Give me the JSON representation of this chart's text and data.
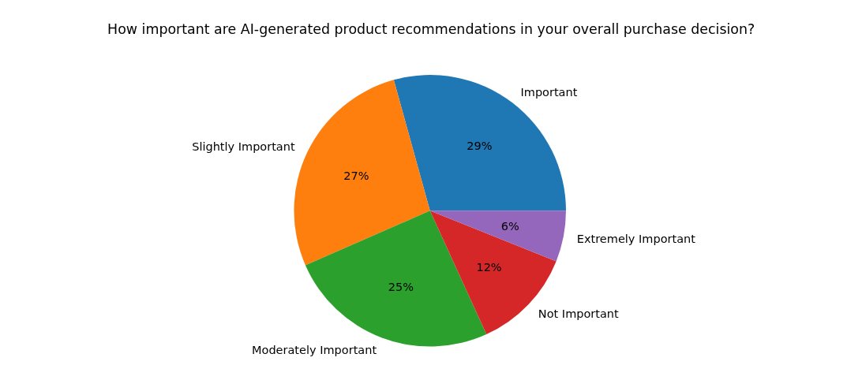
{
  "chart_data": {
    "type": "pie",
    "title": "How important are AI-generated product recommendations in your overall purchase decision?",
    "categories": [
      "Important",
      "Slightly Important",
      "Moderately Important",
      "Not Important",
      "Extremely Important"
    ],
    "values": [
      29,
      27,
      25,
      12,
      6
    ],
    "colors": [
      "#1f77b4",
      "#ff7f0e",
      "#2ca02c",
      "#d62728",
      "#9467bd"
    ],
    "value_labels": [
      "29%",
      "27%",
      "25%",
      "12%",
      "6%"
    ]
  }
}
